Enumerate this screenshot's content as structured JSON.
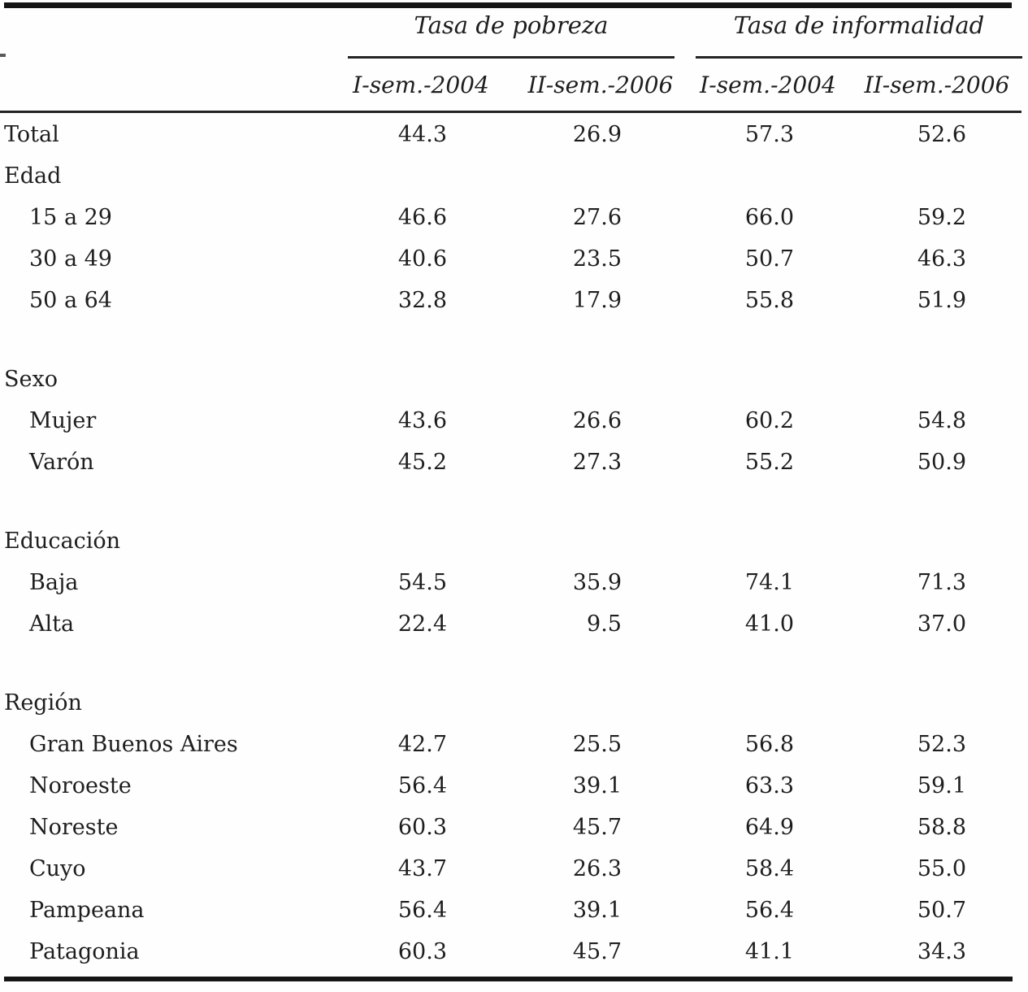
{
  "table": {
    "column_groups": [
      {
        "label": "Tasa de pobreza",
        "sub_columns": [
          "I-sem.-2004",
          "II-sem.-2006"
        ]
      },
      {
        "label": "Tasa de informalidad",
        "sub_columns": [
          "I-sem.-2004",
          "II-sem.-2006"
        ]
      }
    ],
    "rows": [
      {
        "type": "data",
        "label": "Total",
        "values": [
          "44.3",
          "26.9",
          "57.3",
          "52.6"
        ]
      },
      {
        "type": "section",
        "label": "Edad"
      },
      {
        "type": "data",
        "label": "15 a 29",
        "indent": true,
        "values": [
          "46.6",
          "27.6",
          "66.0",
          "59.2"
        ]
      },
      {
        "type": "data",
        "label": "30 a 49",
        "indent": true,
        "values": [
          "40.6",
          "23.5",
          "50.7",
          "46.3"
        ]
      },
      {
        "type": "data",
        "label": "50 a 64",
        "indent": true,
        "values": [
          "32.8",
          "17.9",
          "55.8",
          "51.9"
        ]
      },
      {
        "type": "spacer"
      },
      {
        "type": "section",
        "label": "Sexo"
      },
      {
        "type": "data",
        "label": "Mujer",
        "indent": true,
        "values": [
          "43.6",
          "26.6",
          "60.2",
          "54.8"
        ]
      },
      {
        "type": "data",
        "label": "Varón",
        "indent": true,
        "values": [
          "45.2",
          "27.3",
          "55.2",
          "50.9"
        ]
      },
      {
        "type": "spacer"
      },
      {
        "type": "section",
        "label": "Educación"
      },
      {
        "type": "data",
        "label": "Baja",
        "indent": true,
        "values": [
          "54.5",
          "35.9",
          "74.1",
          "71.3"
        ]
      },
      {
        "type": "data",
        "label": "Alta",
        "indent": true,
        "values": [
          "22.4",
          "9.5",
          "41.0",
          "37.0"
        ]
      },
      {
        "type": "spacer"
      },
      {
        "type": "section",
        "label": "Región"
      },
      {
        "type": "data",
        "label": "Gran Buenos Aires",
        "indent": true,
        "values": [
          "42.7",
          "25.5",
          "56.8",
          "52.3"
        ]
      },
      {
        "type": "data",
        "label": "Noroeste",
        "indent": true,
        "values": [
          "56.4",
          "39.1",
          "63.3",
          "59.1"
        ]
      },
      {
        "type": "data",
        "label": "Noreste",
        "indent": true,
        "values": [
          "60.3",
          "45.7",
          "64.9",
          "58.8"
        ]
      },
      {
        "type": "data",
        "label": "Cuyo",
        "indent": true,
        "values": [
          "43.7",
          "26.3",
          "58.4",
          "55.0"
        ]
      },
      {
        "type": "data",
        "label": "Pampeana",
        "indent": true,
        "values": [
          "56.4",
          "39.1",
          "56.4",
          "50.7"
        ]
      },
      {
        "type": "data",
        "label": "Patagonia",
        "indent": true,
        "values": [
          "60.3",
          "45.7",
          "41.1",
          "34.3"
        ]
      }
    ]
  },
  "colors": {
    "background": "#fefefe",
    "text": "#1e1e1e",
    "rule": "#242424",
    "thick_rule": "#151515"
  }
}
